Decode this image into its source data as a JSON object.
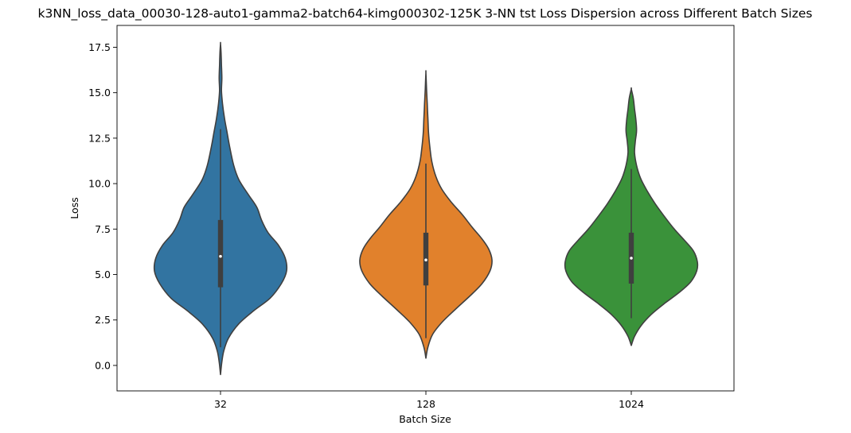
{
  "chart_data": {
    "type": "violin",
    "title": "k3NN_loss_data_00030-128-auto1-gamma2-batch64-kimg000302-125K 3-NN tst Loss Dispersion across Different Batch Sizes",
    "xlabel": "Batch Size",
    "ylabel": "Loss",
    "categories": [
      "32",
      "128",
      "1024"
    ],
    "ylim": [
      -1.4,
      18.7
    ],
    "yticks": [
      0.0,
      2.5,
      5.0,
      7.5,
      10.0,
      12.5,
      15.0,
      17.5
    ],
    "ytick_labels": [
      "0.0",
      "2.5",
      "5.0",
      "7.5",
      "10.0",
      "12.5",
      "15.0",
      "17.5"
    ],
    "grid": false,
    "legend": "none",
    "series": [
      {
        "category": "32",
        "color": "#3274a1",
        "stats": {
          "min": 1.0,
          "q1": 4.3,
          "median": 6.0,
          "q3": 8.0,
          "max": 13.0,
          "kde_min": -0.5,
          "kde_max": 17.7
        },
        "density": [
          [
            -0.5,
            0.0
          ],
          [
            0.2,
            0.02
          ],
          [
            0.8,
            0.05
          ],
          [
            1.5,
            0.12
          ],
          [
            2.3,
            0.28
          ],
          [
            3.0,
            0.5
          ],
          [
            3.7,
            0.75
          ],
          [
            4.5,
            0.92
          ],
          [
            5.2,
            1.0
          ],
          [
            5.9,
            0.98
          ],
          [
            6.6,
            0.88
          ],
          [
            7.3,
            0.72
          ],
          [
            8.0,
            0.62
          ],
          [
            8.7,
            0.55
          ],
          [
            9.4,
            0.42
          ],
          [
            10.2,
            0.28
          ],
          [
            11.0,
            0.2
          ],
          [
            12.0,
            0.14
          ],
          [
            12.8,
            0.1
          ],
          [
            13.6,
            0.06
          ],
          [
            14.4,
            0.03
          ],
          [
            15.1,
            0.015
          ],
          [
            15.8,
            0.02
          ],
          [
            16.5,
            0.015
          ],
          [
            17.2,
            0.008
          ],
          [
            17.7,
            0.0
          ]
        ]
      },
      {
        "category": "128",
        "color": "#e1812c",
        "stats": {
          "min": 1.5,
          "q1": 4.4,
          "median": 5.8,
          "q3": 7.3,
          "max": 11.1,
          "kde_min": 0.4,
          "kde_max": 16.1
        },
        "density": [
          [
            0.4,
            0.0
          ],
          [
            1.0,
            0.03
          ],
          [
            1.7,
            0.1
          ],
          [
            2.4,
            0.25
          ],
          [
            3.1,
            0.45
          ],
          [
            3.8,
            0.66
          ],
          [
            4.5,
            0.85
          ],
          [
            5.2,
            0.97
          ],
          [
            5.8,
            1.0
          ],
          [
            6.4,
            0.95
          ],
          [
            7.0,
            0.84
          ],
          [
            7.6,
            0.7
          ],
          [
            8.3,
            0.55
          ],
          [
            9.0,
            0.38
          ],
          [
            9.7,
            0.24
          ],
          [
            10.4,
            0.15
          ],
          [
            11.2,
            0.09
          ],
          [
            12.0,
            0.06
          ],
          [
            12.8,
            0.04
          ],
          [
            13.6,
            0.03
          ],
          [
            14.4,
            0.02
          ],
          [
            15.2,
            0.01
          ],
          [
            16.1,
            0.0
          ]
        ]
      },
      {
        "category": "1024",
        "color": "#3a923a",
        "stats": {
          "min": 2.6,
          "q1": 4.5,
          "median": 5.9,
          "q3": 7.3,
          "max": 10.8,
          "kde_min": 1.1,
          "kde_max": 15.2
        },
        "density": [
          [
            1.1,
            0.0
          ],
          [
            1.6,
            0.05
          ],
          [
            2.2,
            0.15
          ],
          [
            2.8,
            0.3
          ],
          [
            3.4,
            0.5
          ],
          [
            4.0,
            0.72
          ],
          [
            4.6,
            0.9
          ],
          [
            5.2,
            0.99
          ],
          [
            5.7,
            1.0
          ],
          [
            6.3,
            0.94
          ],
          [
            6.9,
            0.8
          ],
          [
            7.5,
            0.65
          ],
          [
            8.2,
            0.5
          ],
          [
            8.9,
            0.36
          ],
          [
            9.6,
            0.24
          ],
          [
            10.3,
            0.14
          ],
          [
            11.0,
            0.08
          ],
          [
            11.7,
            0.05
          ],
          [
            12.3,
            0.06
          ],
          [
            12.9,
            0.08
          ],
          [
            13.5,
            0.07
          ],
          [
            14.1,
            0.05
          ],
          [
            14.7,
            0.03
          ],
          [
            15.2,
            0.0
          ]
        ]
      }
    ]
  }
}
